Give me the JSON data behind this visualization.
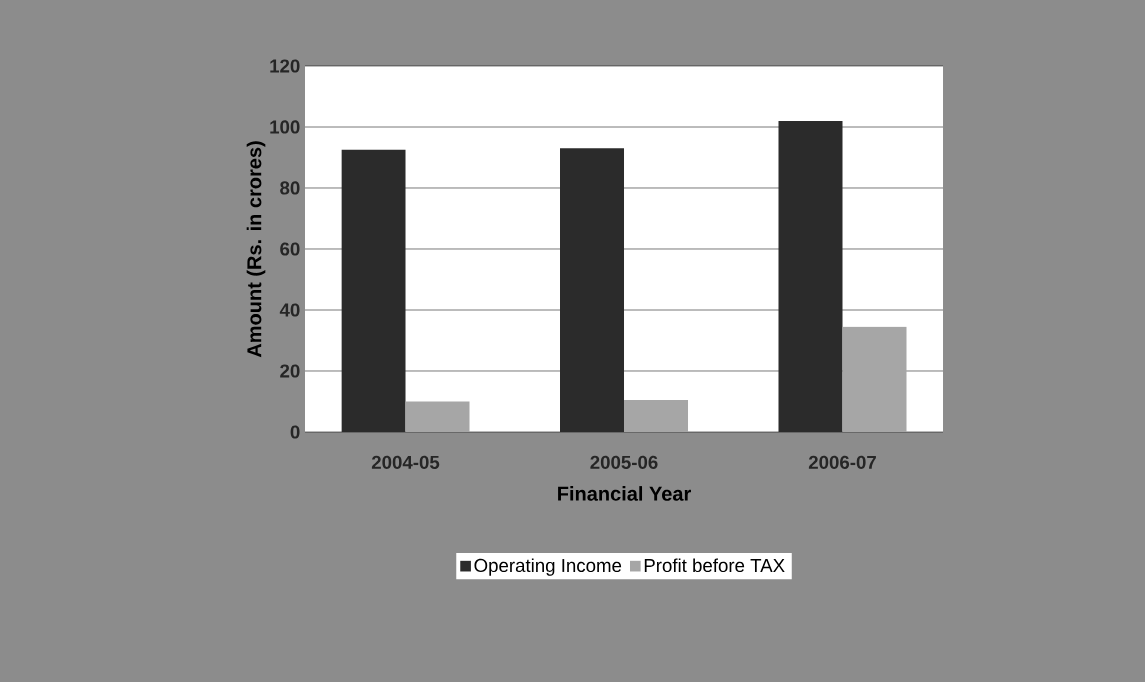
{
  "chart_data": {
    "type": "bar",
    "xlabel": "Financial Year",
    "ylabel": "Amount (Rs. in crores)",
    "categories": [
      "2004-05",
      "2005-06",
      "2006-07"
    ],
    "series": [
      {
        "name": "Operating Income",
        "color": "#2b2b2b",
        "values": [
          92.5,
          93,
          102
        ]
      },
      {
        "name": "Profit before TAX",
        "color": "#a6a6a6",
        "values": [
          10,
          10.5,
          34.5
        ]
      }
    ],
    "ylim": [
      0,
      120
    ],
    "yticks": [
      0,
      20,
      40,
      60,
      80,
      100,
      120
    ],
    "grid": "y",
    "legend": "bottom"
  }
}
